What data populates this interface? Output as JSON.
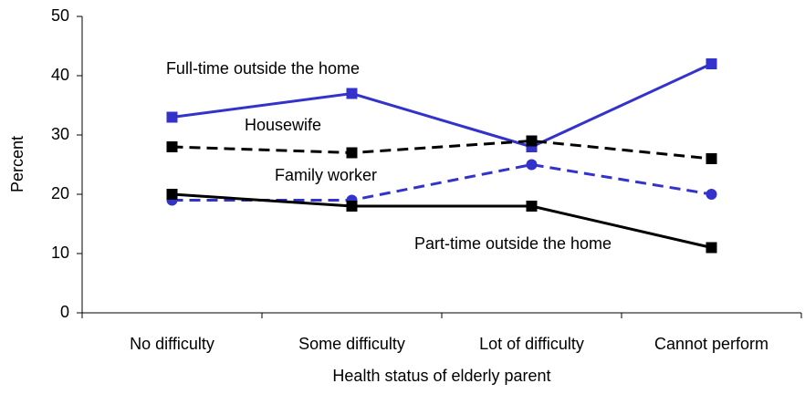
{
  "chart_data": {
    "type": "line",
    "x_label": "Health status of elderly parent",
    "y_label": "Percent",
    "categories": [
      "No difficulty",
      "Some difficulty",
      "Lot of difficulty",
      "Cannot perform"
    ],
    "series": [
      {
        "name": "Full-time outside the home",
        "color": "#3333cc",
        "dashed": false,
        "marker": "square",
        "values": [
          33,
          37,
          28,
          42
        ]
      },
      {
        "name": "Housewife",
        "color": "#000000",
        "dashed": true,
        "marker": "square",
        "values": [
          28,
          27,
          29,
          26
        ]
      },
      {
        "name": "Family worker",
        "color": "#3333cc",
        "dashed": true,
        "marker": "circle",
        "values": [
          19,
          19,
          25,
          20
        ]
      },
      {
        "name": "Part-time outside the home",
        "color": "#000000",
        "dashed": false,
        "marker": "square",
        "values": [
          20,
          18,
          18,
          11
        ]
      }
    ],
    "ylim": [
      0,
      50
    ],
    "yticks": [
      0,
      10,
      20,
      30,
      40,
      50
    ],
    "grid": false
  }
}
